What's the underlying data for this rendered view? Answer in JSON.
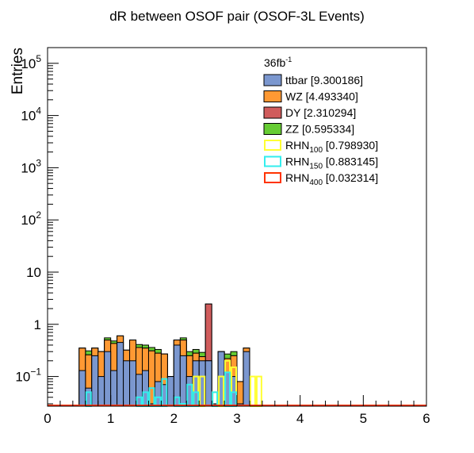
{
  "chart_data": {
    "type": "histogram",
    "title": "dR between OSOF pair (OSOF-3L Events)",
    "xlabel": "",
    "ylabel": "Entries",
    "xlim": [
      0,
      6
    ],
    "ylim": [
      0.027,
      200000
    ],
    "log_y": true,
    "bin_width": 0.1,
    "x_ticks": [
      "0",
      "1",
      "2",
      "3",
      "4",
      "5",
      "6"
    ],
    "y_ticks": [
      {
        "value": 0.1,
        "base": "10",
        "exp": "−1"
      },
      {
        "value": 1,
        "base": "1",
        "exp": ""
      },
      {
        "value": 10,
        "base": "10",
        "exp": ""
      },
      {
        "value": 100,
        "base": "10",
        "exp": "2"
      },
      {
        "value": 1000,
        "base": "10",
        "exp": "3"
      },
      {
        "value": 10000,
        "base": "10",
        "exp": "4"
      },
      {
        "value": 100000,
        "base": "10",
        "exp": "5"
      }
    ],
    "legend": {
      "header": {
        "text": "36fb",
        "sup": "-1"
      },
      "placement": "top-right"
    },
    "stack": [
      {
        "name": "ttbar",
        "label": "ttbar [9.300186]",
        "color": "#7b97cf",
        "x": [
          0.5,
          0.6,
          0.7,
          0.8,
          0.9,
          1.0,
          1.1,
          1.2,
          1.3,
          1.4,
          1.5,
          1.6,
          1.7,
          1.8,
          1.9,
          2.0,
          2.1,
          2.2,
          2.3,
          2.4,
          2.5,
          2.6,
          2.7,
          2.8,
          2.9,
          3.0,
          3.1
        ],
        "values": [
          0.13,
          0.06,
          0.25,
          0.1,
          0.3,
          0.13,
          0.45,
          0.2,
          0.2,
          0.11,
          0.13,
          0.03,
          0.08,
          0.07,
          0.1,
          0.4,
          0.25,
          0.1,
          0.2,
          0.2,
          0.2,
          0.03,
          0.3,
          0.12,
          0.1,
          0.03,
          0.3
        ]
      },
      {
        "name": "WZ",
        "label": "WZ [4.493340]",
        "color": "#ff9933",
        "x": [
          0.5,
          0.6,
          0.7,
          0.8,
          0.9,
          1.0,
          1.1,
          1.2,
          1.3,
          1.4,
          1.5,
          1.6,
          1.7,
          1.8,
          1.9,
          2.0,
          2.1,
          2.2,
          2.3,
          2.4,
          2.5,
          2.6,
          2.7,
          2.8,
          2.9,
          3.0,
          3.1
        ],
        "values": [
          0.22,
          0.2,
          0.1,
          0.2,
          0.2,
          0.3,
          0.15,
          0.12,
          0.3,
          0.25,
          0.22,
          0.28,
          0.2,
          0.2,
          0.0,
          0.1,
          0.25,
          0.15,
          0.08,
          0.04,
          0.0,
          0.0,
          0.0,
          0.1,
          0.15,
          0.05,
          0.05
        ]
      },
      {
        "name": "DY",
        "label": "DY [2.310294]",
        "color": "#d05c5c",
        "x": [
          2.5
        ],
        "values": [
          2.25
        ]
      },
      {
        "name": "ZZ",
        "label": "ZZ [0.595334]",
        "color": "#66cc33",
        "x": [
          0.5,
          0.6,
          0.7,
          0.8,
          0.9,
          1.0,
          1.1,
          1.2,
          1.3,
          1.4,
          1.5,
          1.6,
          1.7,
          1.8,
          1.9,
          2.0,
          2.1,
          2.2,
          2.3,
          2.4,
          2.5,
          2.6,
          2.7,
          2.8,
          2.9,
          3.0,
          3.1
        ],
        "values": [
          0.0,
          0.05,
          0.0,
          0.0,
          0.05,
          0.05,
          0.0,
          0.0,
          0.0,
          0.05,
          0.05,
          0.05,
          0.05,
          0.0,
          0.0,
          0.0,
          0.05,
          0.05,
          0.05,
          0.05,
          0.0,
          0.0,
          0.0,
          0.05,
          0.05,
          0.0,
          0.0
        ]
      }
    ],
    "overlays": [
      {
        "name": "RHN",
        "sub": "100",
        "label_value": " [0.798930]",
        "color": "#ffff33",
        "x": [
          2.3,
          2.4,
          2.5,
          2.6,
          2.7,
          2.8,
          2.9,
          3.0,
          3.1,
          3.2,
          3.3
        ],
        "values": [
          0.1,
          0.1,
          0.0,
          0.05,
          0.1,
          0.2,
          0.15,
          0.0,
          0.0,
          0.1,
          0.1
        ]
      },
      {
        "name": "RHN",
        "sub": "150",
        "label_value": " [0.883145]",
        "color": "#33eeee",
        "x": [
          0.6,
          0.7,
          0.8,
          0.9,
          1.0,
          1.1,
          1.2,
          1.3,
          1.4,
          1.5,
          1.6,
          1.7,
          1.8,
          1.9,
          2.0,
          2.1,
          2.2,
          2.3,
          2.4,
          2.5,
          2.6,
          2.7,
          2.8,
          2.9,
          3.0
        ],
        "values": [
          0.05,
          0.0,
          0.0,
          0.0,
          0.0,
          0.0,
          0.0,
          0.0,
          0.04,
          0.05,
          0.06,
          0.04,
          0.09,
          0.0,
          0.04,
          0.03,
          0.07,
          0.05,
          0.0,
          0.0,
          0.05,
          0.0,
          0.12,
          0.05,
          0.0
        ]
      },
      {
        "name": "RHN",
        "sub": "400",
        "label_value": " [0.032314]",
        "color": "#ff3300",
        "x": [
          0.0,
          6.0
        ],
        "values": [
          0.0,
          0.0
        ]
      }
    ]
  }
}
